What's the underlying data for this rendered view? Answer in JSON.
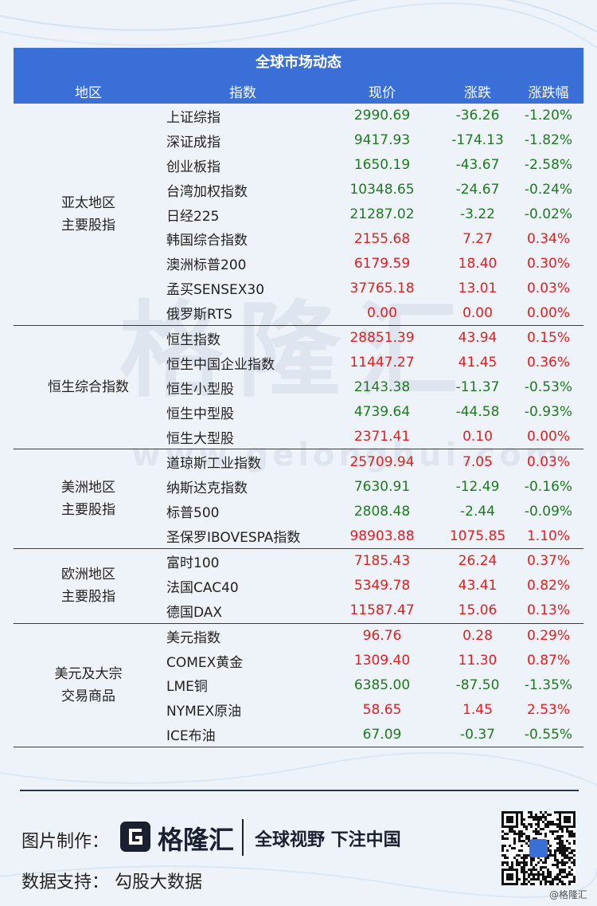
{
  "title": "全球市场动态",
  "headers": [
    "地区",
    "指数",
    "现价",
    "涨跌",
    "涨跌幅"
  ],
  "groups": [
    {
      "label": "亚太地区\n主要股指",
      "rows": [
        {
          "name": "上证综指",
          "price": "2990.69",
          "change": "-36.26",
          "pct": "-1.20%",
          "dir": "down"
        },
        {
          "name": "深证成指",
          "price": "9417.93",
          "change": "-174.13",
          "pct": "-1.82%",
          "dir": "down"
        },
        {
          "name": "创业板指",
          "price": "1650.19",
          "change": "-43.67",
          "pct": "-2.58%",
          "dir": "down"
        },
        {
          "name": "台湾加权指数",
          "price": "10348.65",
          "change": "-24.67",
          "pct": "-0.24%",
          "dir": "down"
        },
        {
          "name": "日经225",
          "price": "21287.02",
          "change": "-3.22",
          "pct": "-0.02%",
          "dir": "down"
        },
        {
          "name": "韩国综合指数",
          "price": "2155.68",
          "change": "7.27",
          "pct": "0.34%",
          "dir": "up"
        },
        {
          "name": "澳洲标普200",
          "price": "6179.59",
          "change": "18.40",
          "pct": "0.30%",
          "dir": "up"
        },
        {
          "name": "孟买SENSEX30",
          "price": "37765.18",
          "change": "13.01",
          "pct": "0.03%",
          "dir": "up"
        },
        {
          "name": "俄罗斯RTS",
          "price": "0.00",
          "change": "0.00",
          "pct": "0.00%",
          "dir": "up"
        }
      ]
    },
    {
      "label": "恒生综合指数",
      "rows": [
        {
          "name": "恒生指数",
          "price": "28851.39",
          "change": "43.94",
          "pct": "0.15%",
          "dir": "up"
        },
        {
          "name": "恒生中国企业指数",
          "price": "11447.27",
          "change": "41.45",
          "pct": "0.36%",
          "dir": "up"
        },
        {
          "name": "恒生小型股",
          "price": "2143.38",
          "change": "-11.37",
          "pct": "-0.53%",
          "dir": "down"
        },
        {
          "name": "恒生中型股",
          "price": "4739.64",
          "change": "-44.58",
          "pct": "-0.93%",
          "dir": "down"
        },
        {
          "name": "恒生大型股",
          "price": "2371.41",
          "change": "0.10",
          "pct": "0.00%",
          "dir": "up"
        }
      ]
    },
    {
      "label": "美洲地区\n主要股指",
      "rows": [
        {
          "name": "道琼斯工业指数",
          "price": "25709.94",
          "change": "7.05",
          "pct": "0.03%",
          "dir": "up"
        },
        {
          "name": "纳斯达克指数",
          "price": "7630.91",
          "change": "-12.49",
          "pct": "-0.16%",
          "dir": "down"
        },
        {
          "name": "标普500",
          "price": "2808.48",
          "change": "-2.44",
          "pct": "-0.09%",
          "dir": "down"
        },
        {
          "name": "圣保罗IBOVESPA指数",
          "price": "98903.88",
          "change": "1075.85",
          "pct": "1.10%",
          "dir": "up"
        }
      ]
    },
    {
      "label": "欧洲地区\n主要股指",
      "rows": [
        {
          "name": "富时100",
          "price": "7185.43",
          "change": "26.24",
          "pct": "0.37%",
          "dir": "up"
        },
        {
          "name": "法国CAC40",
          "price": "5349.78",
          "change": "43.41",
          "pct": "0.82%",
          "dir": "up"
        },
        {
          "name": "德国DAX",
          "price": "11587.47",
          "change": "15.06",
          "pct": "0.13%",
          "dir": "up"
        }
      ]
    },
    {
      "label": "美元及大宗\n交易商品",
      "rows": [
        {
          "name": "美元指数",
          "price": "96.76",
          "change": "0.28",
          "pct": "0.29%",
          "dir": "up"
        },
        {
          "name": "COMEX黄金",
          "price": "1309.40",
          "change": "11.30",
          "pct": "0.87%",
          "dir": "up"
        },
        {
          "name": "LME铜",
          "price": "6385.00",
          "change": "-87.50",
          "pct": "-1.35%",
          "dir": "down"
        },
        {
          "name": "NYMEX原油",
          "price": "58.65",
          "change": "1.45",
          "pct": "2.53%",
          "dir": "up"
        },
        {
          "name": "ICE布油",
          "price": "67.09",
          "change": "-0.37",
          "pct": "-0.55%",
          "dir": "down"
        }
      ]
    }
  ],
  "watermark": {
    "brand": "格隆汇",
    "url": "www.gelonghui.com"
  },
  "footer": {
    "credit_label": "图片制作：",
    "logo_text": "格隆汇",
    "slogan": "全球视野 下注中国",
    "data_label": "数据支持：",
    "data_source": "勾股大数据",
    "qr_caption": "@格隆汇"
  },
  "colors": {
    "header_bg": "#3a6fd8",
    "up": "#e02020",
    "down": "#1e7a1e"
  }
}
